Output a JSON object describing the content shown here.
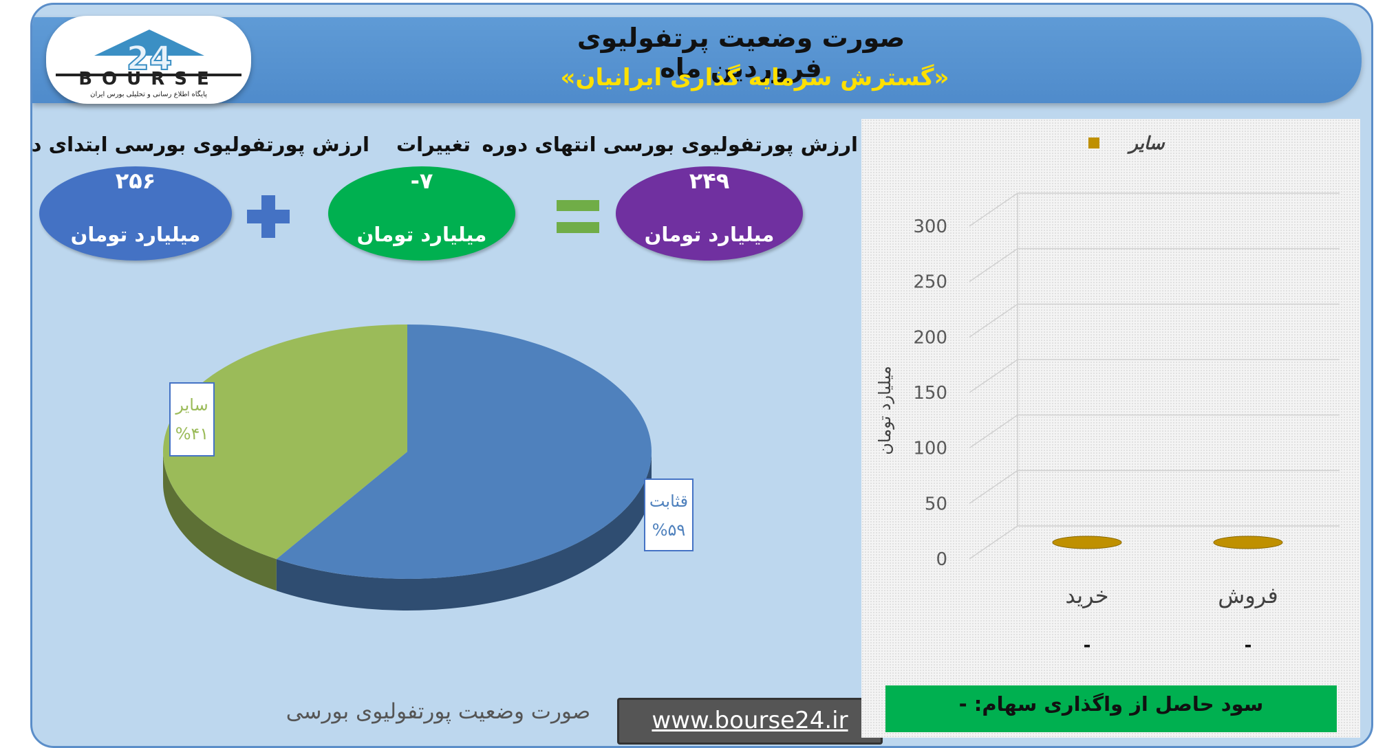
{
  "header": {
    "title": "صورت وضعیت پرتفولیوی فروردین ماه",
    "subtitle": "«گسترش سرمایه گذاری ایرانیان»"
  },
  "logo": {
    "text": "BOURSE",
    "number": "24",
    "tagline": "پایگاه اطلاع رسانی و تحلیلی بورس ایران"
  },
  "summary": {
    "start": {
      "label": "ارزش پورتفولیوی بورسی ابتدای دوره",
      "value": "۲۵۶",
      "unit": "میلیارد تومان",
      "color": "#4472c4"
    },
    "change": {
      "label": "تغییرات",
      "value": "-۷",
      "unit": "میلیارد تومان",
      "color": "#00b050"
    },
    "end": {
      "label": "ارزش پورتفولیوی بورسی انتهای دوره",
      "value": "۲۴۹",
      "unit": "میلیارد تومان",
      "color": "#7030a0"
    },
    "plus_color": "#4472c4",
    "equals_color": "#70ad47"
  },
  "pie_caption": "صورت وضعیت پورتفولیوی بورسی",
  "website": "www.bourse24.ir",
  "profit_text": "سود حاصل از واگذاری سهام: -",
  "chart_data": [
    {
      "type": "pie",
      "title": "",
      "slices": [
        {
          "label": "قثابت",
          "percent_label": "%۵۹",
          "value": 59,
          "color": "#4f81bd"
        },
        {
          "label": "سایر",
          "percent_label": "%۴۱",
          "value": 41,
          "color": "#9bbb59"
        }
      ]
    },
    {
      "type": "bar",
      "title": "",
      "categories": [
        "فروش",
        "خرید"
      ],
      "series": [
        {
          "name": "سایر",
          "values": [
            0,
            0
          ],
          "color": "#bf9000"
        }
      ],
      "value_labels": [
        "-",
        "-"
      ],
      "ylabel": "میلیارد تومان",
      "ylim": [
        0,
        300
      ],
      "yticks": [
        "0",
        "50",
        "100",
        "150",
        "200",
        "250",
        "300"
      ],
      "grid": true,
      "legend": "top"
    }
  ]
}
